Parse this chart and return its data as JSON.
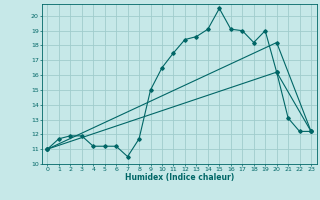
{
  "xlabel": "Humidex (Indice chaleur)",
  "bg_color": "#c6e8e8",
  "grid_color": "#a0cccc",
  "line_color": "#006666",
  "xlim": [
    -0.5,
    23.5
  ],
  "ylim": [
    10.0,
    20.8
  ],
  "yticks": [
    10,
    11,
    12,
    13,
    14,
    15,
    16,
    17,
    18,
    19,
    20
  ],
  "xticks": [
    0,
    1,
    2,
    3,
    4,
    5,
    6,
    7,
    8,
    9,
    10,
    11,
    12,
    13,
    14,
    15,
    16,
    17,
    18,
    19,
    20,
    21,
    22,
    23
  ],
  "line1_x": [
    0,
    1,
    2,
    3,
    4,
    5,
    6,
    7,
    8,
    9,
    10,
    11,
    12,
    13,
    14,
    15,
    16,
    17,
    18,
    19,
    20,
    21,
    22,
    23
  ],
  "line1_y": [
    11.0,
    11.7,
    11.9,
    11.9,
    11.2,
    11.2,
    11.2,
    10.5,
    11.7,
    15.0,
    16.5,
    17.5,
    18.4,
    18.6,
    19.1,
    20.5,
    19.1,
    19.0,
    18.2,
    19.0,
    16.2,
    13.1,
    12.2,
    12.2
  ],
  "line2_x": [
    0,
    20,
    23
  ],
  "line2_y": [
    11.0,
    18.2,
    12.2
  ],
  "line3_x": [
    0,
    20,
    23
  ],
  "line3_y": [
    11.0,
    16.2,
    12.2
  ]
}
